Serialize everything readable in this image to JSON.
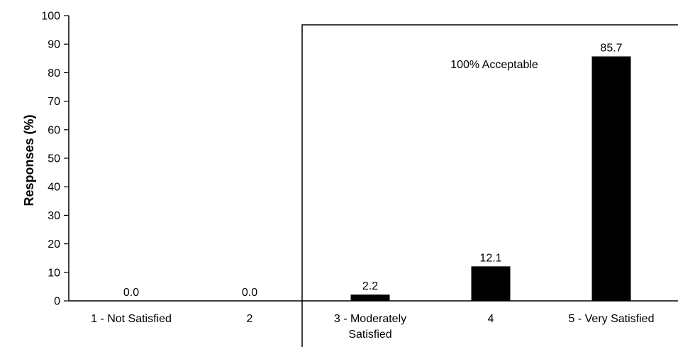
{
  "chart_data": {
    "type": "bar",
    "ylabel": "Responses (%)",
    "ylim": [
      0,
      100
    ],
    "yticks": [
      0,
      10,
      20,
      30,
      40,
      50,
      60,
      70,
      80,
      90,
      100
    ],
    "categories": [
      [
        "1 - Not Satisfied"
      ],
      [
        "2"
      ],
      [
        "3 - Moderately",
        "Satisfied"
      ],
      [
        "4"
      ],
      [
        "5 - Very Satisfied"
      ]
    ],
    "values": [
      0.0,
      0.0,
      2.2,
      12.1,
      85.7
    ],
    "value_labels": [
      "0.0",
      "0.0",
      "2.2",
      "12.1",
      "85.7"
    ],
    "bar_color": "#000000",
    "annotation": {
      "text": "100% Acceptable",
      "spans_categories": [
        2,
        4
      ]
    }
  }
}
